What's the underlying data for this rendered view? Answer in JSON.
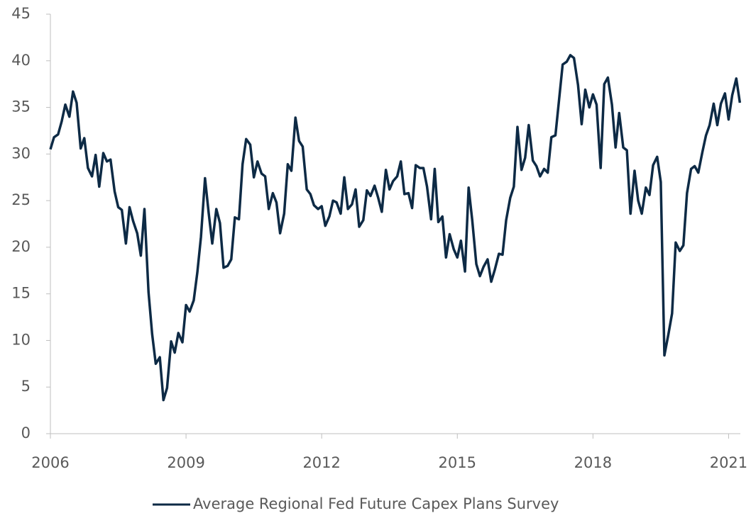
{
  "chart_data": {
    "type": "line",
    "xlim": [
      2006,
      2021.26
    ],
    "xticks": [
      2006,
      2009,
      2012,
      2015,
      2018,
      2021
    ],
    "ylim": [
      0,
      45
    ],
    "yticks": [
      0,
      5,
      10,
      15,
      20,
      25,
      30,
      35,
      40,
      45
    ],
    "grid": false,
    "legend": "bottom",
    "x": [
      2006.0,
      2006.08,
      2006.17,
      2006.25,
      2006.33,
      2006.42,
      2006.5,
      2006.58,
      2006.67,
      2006.75,
      2006.83,
      2006.92,
      2007.0,
      2007.08,
      2007.17,
      2007.25,
      2007.33,
      2007.42,
      2007.5,
      2007.58,
      2007.67,
      2007.75,
      2007.83,
      2007.92,
      2008.0,
      2008.08,
      2008.17,
      2008.25,
      2008.33,
      2008.42,
      2008.5,
      2008.58,
      2008.67,
      2008.75,
      2008.83,
      2008.92,
      2009.0,
      2009.08,
      2009.17,
      2009.25,
      2009.33,
      2009.42,
      2009.5,
      2009.58,
      2009.67,
      2009.75,
      2009.83,
      2009.92,
      2010.0,
      2010.08,
      2010.17,
      2010.25,
      2010.33,
      2010.42,
      2010.5,
      2010.58,
      2010.67,
      2010.75,
      2010.83,
      2010.92,
      2011.0,
      2011.08,
      2011.17,
      2011.25,
      2011.33,
      2011.42,
      2011.5,
      2011.58,
      2011.67,
      2011.75,
      2011.83,
      2011.92,
      2012.0,
      2012.08,
      2012.17,
      2012.25,
      2012.33,
      2012.42,
      2012.5,
      2012.58,
      2012.67,
      2012.75,
      2012.83,
      2012.92,
      2013.0,
      2013.08,
      2013.17,
      2013.25,
      2013.33,
      2013.42,
      2013.5,
      2013.58,
      2013.67,
      2013.75,
      2013.83,
      2013.92,
      2014.0,
      2014.08,
      2014.17,
      2014.25,
      2014.33,
      2014.42,
      2014.5,
      2014.58,
      2014.67,
      2014.75,
      2014.83,
      2014.92,
      2015.0,
      2015.08,
      2015.17,
      2015.25,
      2015.33,
      2015.42,
      2015.5,
      2015.58,
      2015.67,
      2015.75,
      2015.83,
      2015.92,
      2016.0,
      2016.08,
      2016.17,
      2016.25,
      2016.33,
      2016.42,
      2016.5,
      2016.58,
      2016.67,
      2016.75,
      2016.83,
      2016.92,
      2017.0,
      2017.08,
      2017.17,
      2017.25,
      2017.33,
      2017.42,
      2017.5,
      2017.58,
      2017.67,
      2017.75,
      2017.83,
      2017.92,
      2018.0,
      2018.08,
      2018.17,
      2018.25,
      2018.33,
      2018.42,
      2018.5,
      2018.58,
      2018.67,
      2018.75,
      2018.83,
      2018.92,
      2019.0,
      2019.08,
      2019.17,
      2019.25,
      2019.33,
      2019.42,
      2019.5,
      2019.58,
      2019.67,
      2019.75,
      2019.83,
      2019.92,
      2020.0,
      2020.08,
      2020.17,
      2020.25,
      2020.33,
      2020.42,
      2020.5,
      2020.58,
      2020.67,
      2020.75,
      2020.83,
      2020.92,
      2021.0,
      2021.08,
      2021.17,
      2021.25
    ],
    "series": [
      {
        "name": "Average Regional Fed Future Capex Plans Survey",
        "color": "#0d2a45",
        "values": [
          30.5,
          31.8,
          32.1,
          33.5,
          35.3,
          34.0,
          36.7,
          35.5,
          30.6,
          31.7,
          28.5,
          27.6,
          29.9,
          26.5,
          30.1,
          29.2,
          29.4,
          26.0,
          24.3,
          24.0,
          20.4,
          24.3,
          22.8,
          21.5,
          19.1,
          24.1,
          15.2,
          10.7,
          7.5,
          8.2,
          3.6,
          4.9,
          9.9,
          8.7,
          10.8,
          9.8,
          13.8,
          13.1,
          14.3,
          17.3,
          21.1,
          27.4,
          23.7,
          20.4,
          24.1,
          22.6,
          17.8,
          18.0,
          18.7,
          23.2,
          23.0,
          28.9,
          31.6,
          31.0,
          27.5,
          29.2,
          27.9,
          27.6,
          24.1,
          25.8,
          24.8,
          21.5,
          23.6,
          28.9,
          28.2,
          33.9,
          31.4,
          30.8,
          26.2,
          25.7,
          24.5,
          24.1,
          24.4,
          22.3,
          23.3,
          25.0,
          24.8,
          23.6,
          27.5,
          24.1,
          24.6,
          26.2,
          22.2,
          22.9,
          26.1,
          25.5,
          26.6,
          25.3,
          23.8,
          28.3,
          26.2,
          27.1,
          27.6,
          29.2,
          25.7,
          25.8,
          24.2,
          28.8,
          28.5,
          28.5,
          26.5,
          23.0,
          28.4,
          22.7,
          23.3,
          18.9,
          21.4,
          19.8,
          18.9,
          20.7,
          17.4,
          26.4,
          22.9,
          18.2,
          16.9,
          17.9,
          18.7,
          16.3,
          17.6,
          19.3,
          19.2,
          22.9,
          25.3,
          26.5,
          32.9,
          28.3,
          29.6,
          33.1,
          29.3,
          28.7,
          27.6,
          28.4,
          28.0,
          31.8,
          32.0,
          35.8,
          39.6,
          39.9,
          40.6,
          40.3,
          37.4,
          33.2,
          36.9,
          35.0,
          36.4,
          35.3,
          28.5,
          37.5,
          38.2,
          35.3,
          30.7,
          34.4,
          30.7,
          30.4,
          23.6,
          28.2,
          25.0,
          23.6,
          26.4,
          25.6,
          28.8,
          29.7,
          27.0,
          8.4,
          10.7,
          12.9,
          20.5,
          19.6,
          20.2,
          25.8,
          28.4,
          28.7,
          28.0,
          30.2,
          32.0,
          33.1,
          35.4,
          33.1,
          35.4,
          36.5,
          33.7,
          36.3,
          38.1,
          35.5
        ]
      }
    ]
  }
}
